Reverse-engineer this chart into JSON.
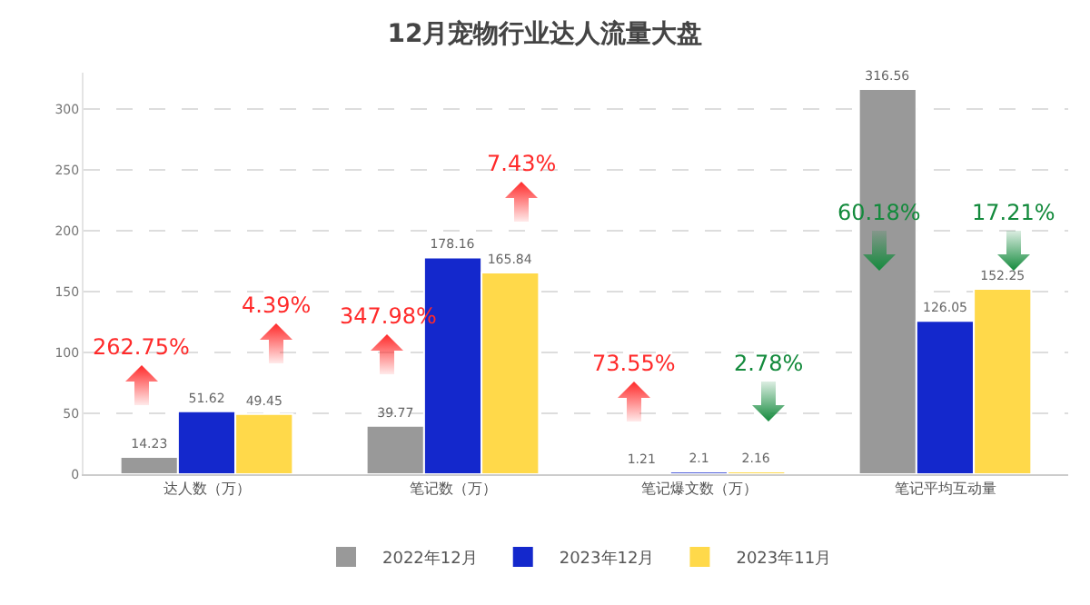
{
  "chart_data": {
    "type": "bar",
    "title": "12月宠物行业达人流量大盘",
    "categories": [
      "达人数（万）",
      "笔记数（万）",
      "笔记爆文数（万）",
      "笔记平均互动量"
    ],
    "series": [
      {
        "name": "2022年12月",
        "color": "#999999",
        "values": [
          14.23,
          39.77,
          1.21,
          316.56
        ]
      },
      {
        "name": "2023年12月",
        "color": "#1428cc",
        "values": [
          51.62,
          178.16,
          2.1,
          126.05
        ]
      },
      {
        "name": "2023年11月",
        "color": "#ffd94a",
        "values": [
          49.45,
          165.84,
          2.16,
          152.25
        ]
      }
    ],
    "ylim": [
      0,
      330
    ],
    "yticks": [
      0,
      50,
      100,
      150,
      200,
      250,
      300
    ],
    "grid": "y",
    "legend": "bottom",
    "data_labels": true,
    "annotations": [
      "262.75%",
      "4.39%",
      "347.98%",
      "7.43%",
      "73.55%",
      "2.78%",
      "60.18%",
      "17.21%"
    ]
  }
}
